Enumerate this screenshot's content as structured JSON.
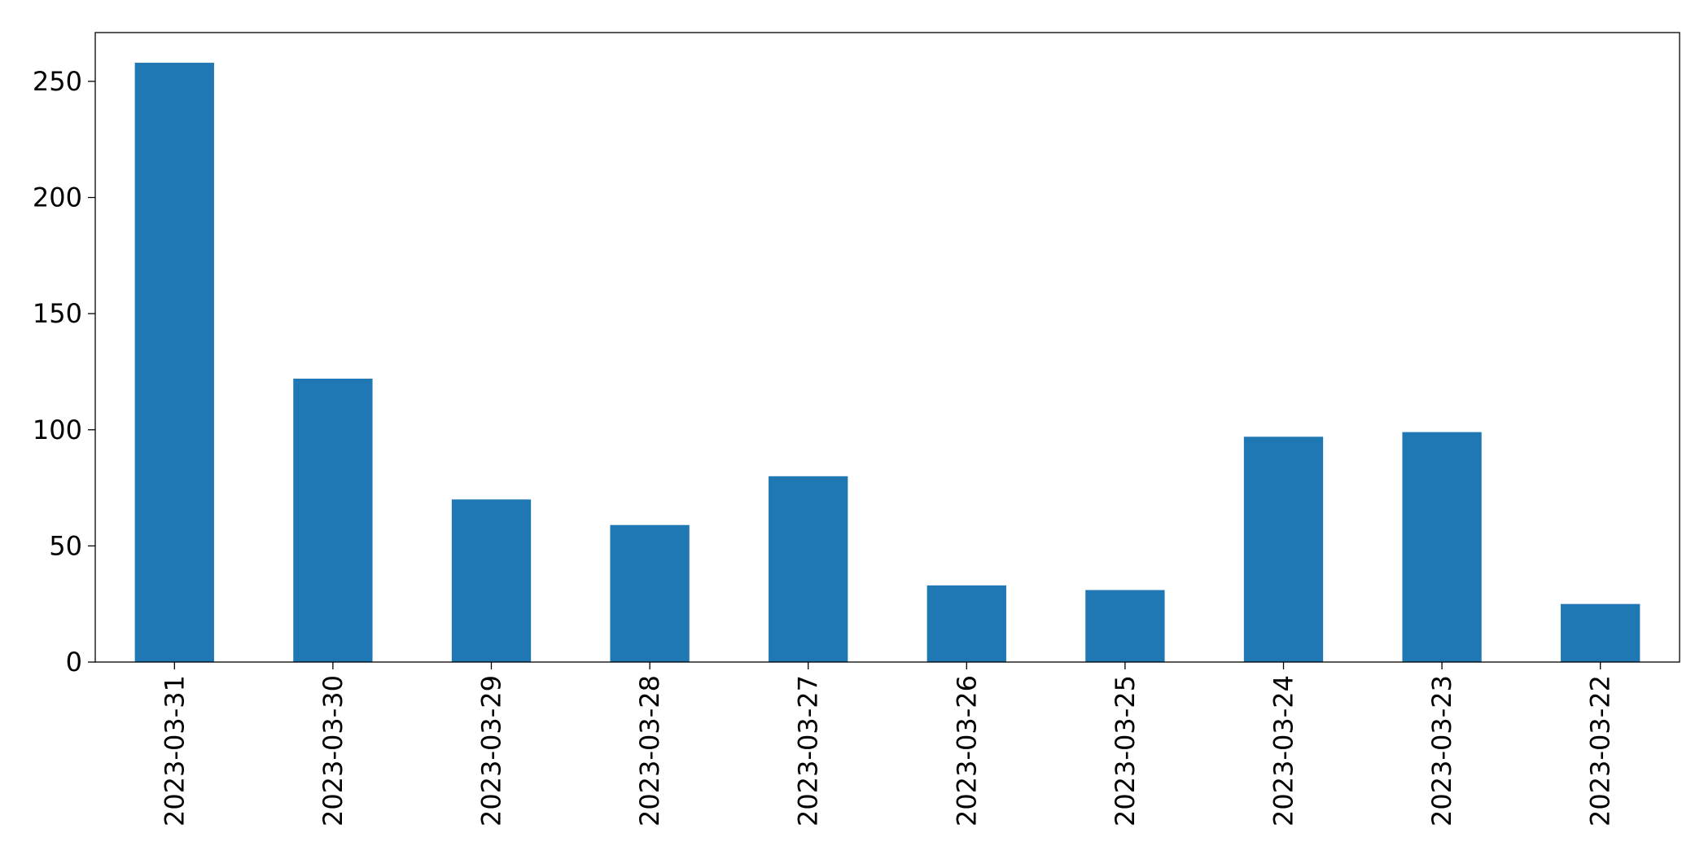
{
  "chart_data": {
    "type": "bar",
    "categories": [
      "2023-03-31",
      "2023-03-30",
      "2023-03-29",
      "2023-03-28",
      "2023-03-27",
      "2023-03-26",
      "2023-03-25",
      "2023-03-24",
      "2023-03-23",
      "2023-03-22"
    ],
    "values": [
      258,
      122,
      70,
      59,
      80,
      33,
      31,
      97,
      99,
      25
    ],
    "color": "#1f77b4",
    "ylim": [
      0,
      271
    ],
    "yticks": [
      0,
      50,
      100,
      150,
      200,
      250
    ],
    "grid": false
  }
}
